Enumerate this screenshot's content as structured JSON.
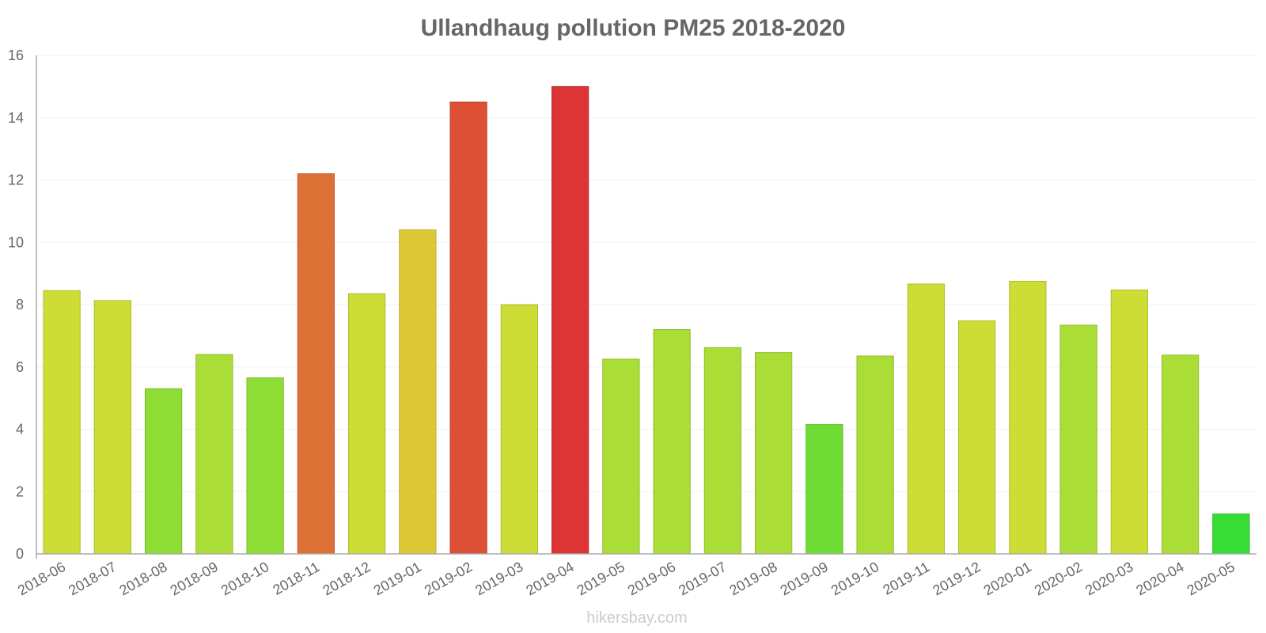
{
  "chart_data": {
    "type": "bar",
    "title": "Ullandhaug pollution PM25 2018-2020",
    "xlabel": "",
    "ylabel": "",
    "ylim": [
      0,
      16
    ],
    "yticks": [
      0,
      2,
      4,
      6,
      8,
      10,
      12,
      14,
      16
    ],
    "categories": [
      "2018-06",
      "2018-07",
      "2018-08",
      "2018-09",
      "2018-10",
      "2018-11",
      "2018-12",
      "2019-01",
      "2019-02",
      "2019-03",
      "2019-04",
      "2019-05",
      "2019-06",
      "2019-07",
      "2019-08",
      "2019-09",
      "2019-10",
      "2019-11",
      "2019-12",
      "2020-01",
      "2020-02",
      "2020-03",
      "2020-04",
      "2020-05"
    ],
    "values": [
      8.45,
      8.13,
      5.3,
      6.4,
      5.65,
      12.2,
      8.35,
      10.4,
      14.5,
      8.0,
      15.0,
      6.25,
      7.2,
      6.62,
      6.46,
      4.15,
      6.35,
      8.66,
      7.48,
      8.75,
      7.34,
      8.47,
      6.38,
      1.28
    ],
    "colors": [
      "#cddd35",
      "#cddd35",
      "#8ddd35",
      "#aadd35",
      "#8ddd35",
      "#dd7035",
      "#cddd35",
      "#ddc935",
      "#dd5035",
      "#cddd35",
      "#dd3535",
      "#aadd35",
      "#aadd35",
      "#aadd35",
      "#aadd35",
      "#6ddd35",
      "#aadd35",
      "#cddd35",
      "#cddd35",
      "#cddd35",
      "#aadd35",
      "#cddd35",
      "#aadd35",
      "#35dd35"
    ],
    "grid": true,
    "legend": "none"
  },
  "watermark": "hikersbay.com"
}
